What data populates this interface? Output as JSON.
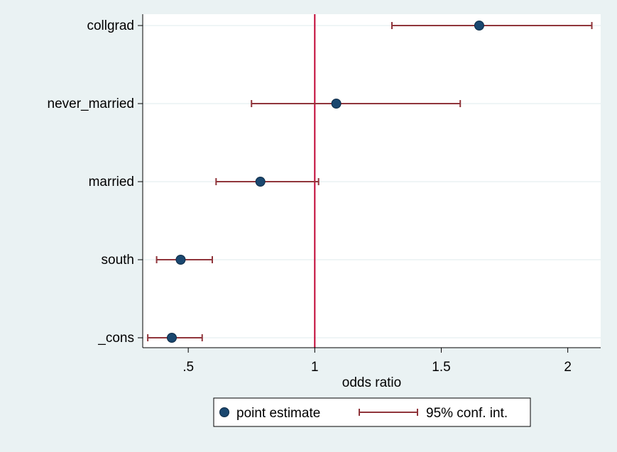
{
  "chart_data": {
    "type": "coefficient_plot",
    "title": "",
    "xlabel": "odds ratio",
    "ylabel": "",
    "xlim": [
      0.32,
      2.13
    ],
    "x_ticks": [
      0.5,
      1,
      1.5,
      2
    ],
    "x_tick_labels": [
      ".5",
      "1",
      "1.5",
      "2"
    ],
    "categories": [
      "collgrad",
      "never_married",
      "married",
      "south",
      "_cons"
    ],
    "series": [
      {
        "name": "point estimate",
        "values": [
          1.65,
          1.085,
          0.785,
          0.47,
          0.435
        ]
      },
      {
        "name": "95% conf. int.",
        "lower": [
          1.305,
          0.75,
          0.61,
          0.375,
          0.34
        ],
        "upper": [
          2.095,
          1.575,
          1.015,
          0.595,
          0.555
        ]
      }
    ],
    "reference_line": {
      "x": 1
    },
    "colors": {
      "background": "#eaf2f3",
      "plot_background": "#ffffff",
      "point": "#1a476f",
      "ci": "#90353b",
      "reference_line": "#c10534",
      "grid": "#eaf2f3"
    },
    "legend": {
      "position": "bottom",
      "labels": [
        "point estimate",
        "95% conf. int."
      ]
    }
  }
}
